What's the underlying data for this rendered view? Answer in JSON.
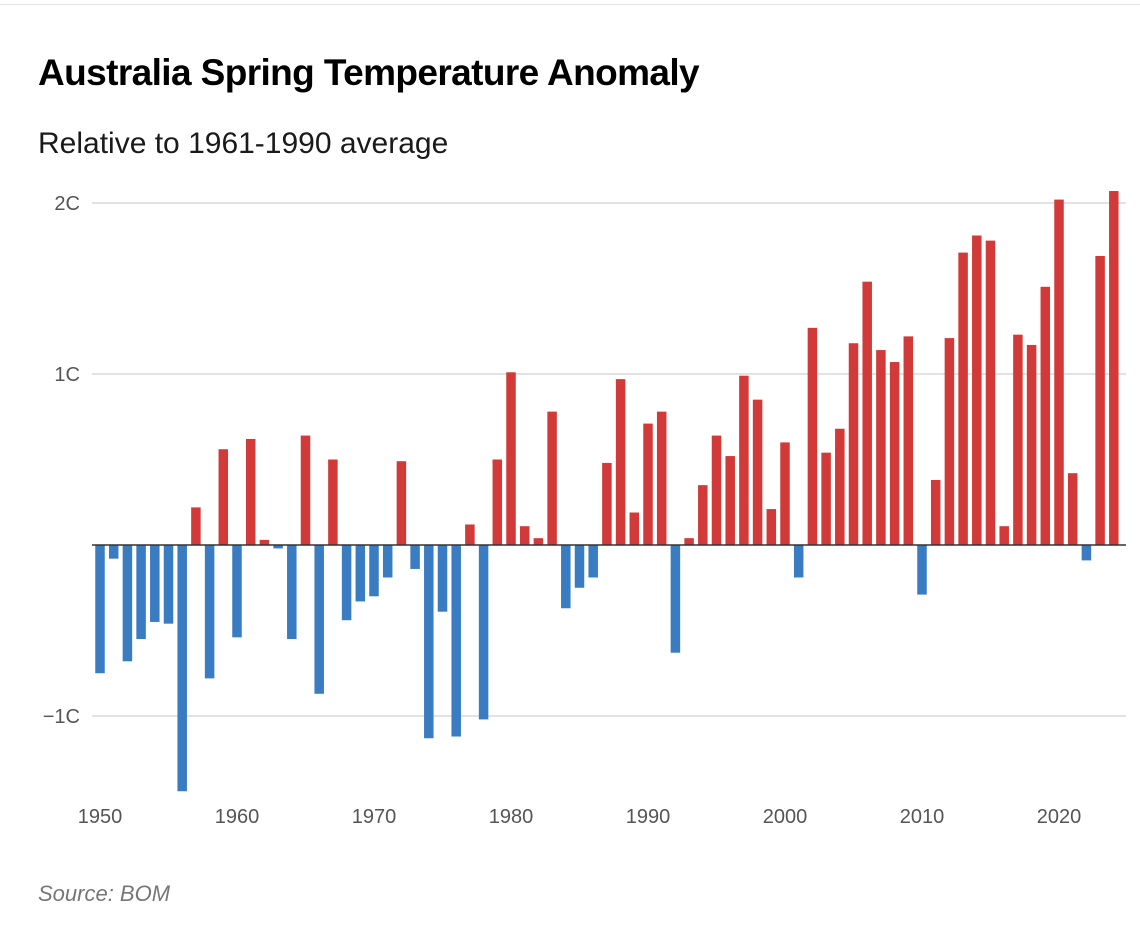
{
  "chart_data": {
    "type": "bar",
    "title": "Australia Spring Temperature Anomaly",
    "subtitle": "Relative to 1961-1990 average",
    "source": "Source: BOM",
    "xlabel": "",
    "ylabel": "",
    "ylim": [
      -1.45,
      2.1
    ],
    "grid": true,
    "legend": "none",
    "y_ticks": [
      {
        "value": 2,
        "label": "2C"
      },
      {
        "value": 1,
        "label": "1C"
      },
      {
        "value": -1,
        "label": "−1C"
      }
    ],
    "x_ticks": [
      {
        "value": 1950,
        "label": "1950"
      },
      {
        "value": 1960,
        "label": "1960"
      },
      {
        "value": 1970,
        "label": "1970"
      },
      {
        "value": 1980,
        "label": "1980"
      },
      {
        "value": 1990,
        "label": "1990"
      },
      {
        "value": 2000,
        "label": "2000"
      },
      {
        "value": 2010,
        "label": "2010"
      },
      {
        "value": 2020,
        "label": "2020"
      }
    ],
    "colors": {
      "positive": "#d13a39",
      "negative": "#3a7cc2",
      "gridline": "#d0d0d0",
      "zero_line": "#333333"
    },
    "years": [
      1950,
      1951,
      1952,
      1953,
      1954,
      1955,
      1956,
      1957,
      1958,
      1959,
      1960,
      1961,
      1962,
      1963,
      1964,
      1965,
      1966,
      1967,
      1968,
      1969,
      1970,
      1971,
      1972,
      1973,
      1974,
      1975,
      1976,
      1977,
      1978,
      1979,
      1980,
      1981,
      1982,
      1983,
      1984,
      1985,
      1986,
      1987,
      1988,
      1989,
      1990,
      1991,
      1992,
      1993,
      1994,
      1995,
      1996,
      1997,
      1998,
      1999,
      2000,
      2001,
      2002,
      2003,
      2004,
      2005,
      2006,
      2007,
      2008,
      2009,
      2010,
      2011,
      2012,
      2013,
      2014,
      2015,
      2016,
      2017,
      2018,
      2019,
      2020,
      2021,
      2022,
      2023,
      2024
    ],
    "values": [
      -0.75,
      -0.08,
      -0.68,
      -0.55,
      -0.45,
      -0.46,
      -1.44,
      0.22,
      -0.78,
      0.56,
      -0.54,
      0.62,
      0.03,
      -0.02,
      -0.55,
      0.64,
      -0.87,
      0.5,
      -0.44,
      -0.33,
      -0.3,
      -0.19,
      0.49,
      -0.14,
      -1.13,
      -0.39,
      -1.12,
      0.12,
      -1.02,
      0.5,
      1.01,
      0.11,
      0.04,
      0.78,
      -0.37,
      -0.25,
      -0.19,
      0.48,
      0.97,
      0.19,
      0.71,
      0.78,
      -0.63,
      0.04,
      0.35,
      0.64,
      0.52,
      0.99,
      0.85,
      0.21,
      0.6,
      -0.19,
      1.27,
      0.54,
      0.68,
      1.18,
      1.54,
      1.14,
      1.07,
      1.22,
      -0.29,
      0.38,
      1.21,
      1.71,
      1.81,
      1.78,
      0.11,
      1.23,
      1.17,
      1.51,
      2.02,
      0.42,
      -0.09,
      1.69,
      2.07
    ]
  }
}
